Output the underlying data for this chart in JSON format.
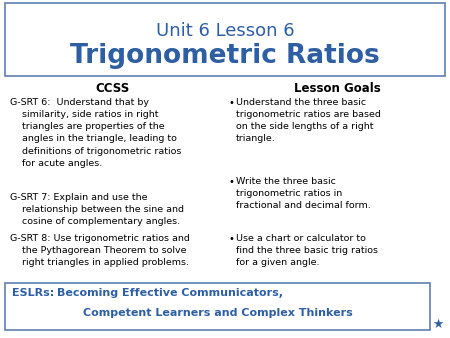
{
  "title_line1": "Unit 6 Lesson 6",
  "title_line2": "Trigonometric Ratios",
  "title_line1_color": "#2E5FA3",
  "title_line2_color": "#2E5FA3",
  "title_box_edge_color": "#6080B0",
  "ccss_header": "CCSS",
  "goals_header": "Lesson Goals",
  "ccss_item1": "G-SRT 6:  Understand that by\n    similarity, side ratios in right\n    triangles are properties of the\n    angles in the triangle, leading to\n    definitions of trigonometric ratios\n    for acute angles.",
  "ccss_item2": "G-SRT 7: Explain and use the\n    relationship between the sine and\n    cosine of complementary angles.",
  "ccss_item3": "G-SRT 8: Use trigonometric ratios and\n    the Pythagorean Theorem to solve\n    right triangles in applied problems.",
  "goal1": "Understand the three basic\ntrigonometric ratios are based\non the side lengths of a right\ntriangle.",
  "goal2": "Write the three basic\ntrigonometric ratios in\nfractional and decimal form.",
  "goal3": "Use a chart or calculator to\nfind the three basic trig ratios\nfor a given angle.",
  "eslr_label": "ESLRs:  ",
  "eslr_text1": "Becoming Effective Communicators,",
  "eslr_text2": "Competent Learners and Complex Thinkers",
  "eslr_color": "#2E5FA3",
  "eslr_box_edge": "#6080B0",
  "bg_color": "#FFFFFF",
  "text_color": "#000000",
  "star_color": "#2E5FA3",
  "bullet": "•"
}
